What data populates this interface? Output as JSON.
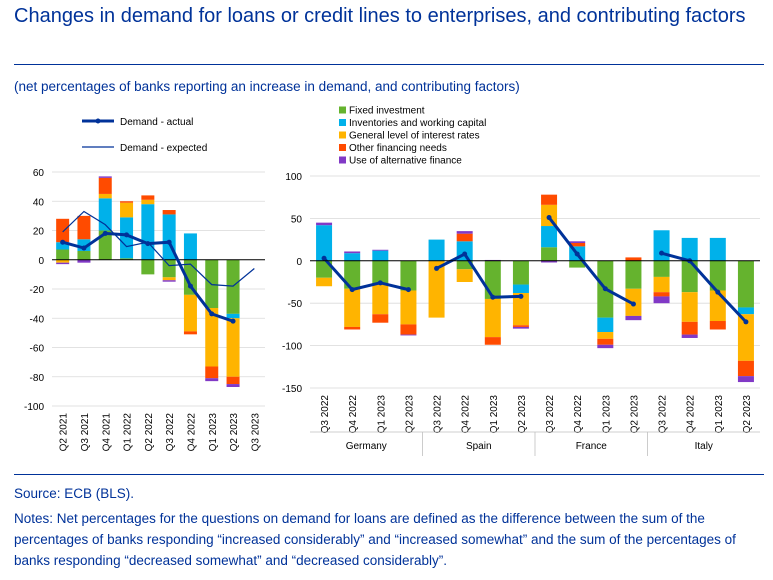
{
  "header": {
    "title": "Changes in demand for loans or credit lines to enterprises, and contributing factors",
    "subtitle": "(net percentages of banks reporting an increase in demand, and contributing factors)"
  },
  "footer": {
    "source": "Source: ECB (BLS).",
    "notes": "Notes: Net percentages for the questions on demand for loans are defined as the difference between the sum of the percentages of banks responding “increased considerably” and “increased somewhat” and the sum of the percentages of banks responding “decreased somewhat” and “decreased considerably”."
  },
  "colors": {
    "fixed_investment": "#65b32e",
    "inventories": "#00b1ea",
    "interest_rates": "#ffb400",
    "other_financing": "#ff4b00",
    "alternative_finance": "#8139c6",
    "demand_line": "#003299",
    "grid": "#d9d9d9"
  },
  "legend": {
    "lines": [
      {
        "label": "Demand - actual",
        "style": "thick"
      },
      {
        "label": "Demand - expected",
        "style": "thin"
      }
    ],
    "factors": [
      {
        "label": "Fixed investment",
        "color": "#65b32e"
      },
      {
        "label": "Inventories and working capital",
        "color": "#00b1ea"
      },
      {
        "label": "General level of interest rates",
        "color": "#ffb400"
      },
      {
        "label": "Other financing needs",
        "color": "#ff4b00"
      },
      {
        "label": "Use of alternative finance",
        "color": "#8139c6"
      }
    ]
  },
  "chart_data": [
    {
      "type": "bar",
      "stacked": true,
      "title": "",
      "ylim": [
        -100,
        60
      ],
      "yticks": [
        60,
        40,
        20,
        0,
        -20,
        -40,
        -60,
        -80,
        -100
      ],
      "categories": [
        "Q2 2021",
        "Q3 2021",
        "Q4 2021",
        "Q1 2022",
        "Q2 2022",
        "Q3 2022",
        "Q4 2022",
        "Q1 2023",
        "Q2 2023",
        "Q3 2023"
      ],
      "series": [
        {
          "name": "Fixed investment",
          "values": [
            7,
            6,
            20,
            1,
            -10,
            -12,
            -24,
            -33,
            -37,
            null
          ]
        },
        {
          "name": "Inventories and working capital",
          "values": [
            5,
            8,
            22,
            28,
            38,
            31,
            18,
            0,
            -3,
            null
          ]
        },
        {
          "name": "General level of interest rates",
          "values": [
            -2,
            0,
            3,
            10,
            3,
            -2,
            -25,
            -40,
            -40,
            null
          ]
        },
        {
          "name": "Other financing needs",
          "values": [
            16,
            16,
            11,
            1,
            3,
            3,
            -2,
            -8,
            -5,
            null
          ]
        },
        {
          "name": "Use of alternative finance",
          "values": [
            -1,
            -2,
            1,
            0,
            0,
            -1,
            0,
            -2,
            -2,
            null
          ]
        }
      ],
      "demand_actual": [
        12,
        8,
        18,
        17,
        11,
        12,
        -18,
        -37,
        -42,
        null
      ],
      "demand_expected": [
        19,
        33,
        24,
        9,
        12,
        -4,
        -3,
        -17,
        -18,
        -6
      ]
    },
    {
      "type": "bar",
      "stacked": true,
      "title": "",
      "ylim": [
        -150,
        100
      ],
      "yticks": [
        100,
        50,
        0,
        -50,
        -100,
        -150
      ],
      "groups": [
        {
          "name": "Germany",
          "categories": [
            "Q3 2022",
            "Q4 2022",
            "Q1 2023",
            "Q2 2023"
          ],
          "series": [
            {
              "name": "Fixed investment",
              "values": [
                -20,
                -33,
                -28,
                -35
              ]
            },
            {
              "name": "Inventories and working capital",
              "values": [
                42,
                9,
                12,
                0
              ]
            },
            {
              "name": "General level of interest rates",
              "values": [
                -10,
                -45,
                -35,
                -40
              ]
            },
            {
              "name": "Other financing needs",
              "values": [
                0,
                -3,
                -10,
                -12
              ]
            },
            {
              "name": "Use of alternative finance",
              "values": [
                3,
                2,
                1,
                -1
              ]
            }
          ],
          "demand_actual": [
            3,
            -34,
            -26,
            -34
          ]
        },
        {
          "name": "Spain",
          "categories": [
            "Q3 2022",
            "Q4 2022",
            "Q1 2023",
            "Q2 2023"
          ],
          "series": [
            {
              "name": "Fixed investment",
              "values": [
                0,
                -10,
                -45,
                -28
              ]
            },
            {
              "name": "Inventories and working capital",
              "values": [
                25,
                23,
                0,
                -10
              ]
            },
            {
              "name": "General level of interest rates",
              "values": [
                -67,
                -15,
                -45,
                -38
              ]
            },
            {
              "name": "Other financing needs",
              "values": [
                0,
                9,
                -9,
                -2
              ]
            },
            {
              "name": "Use of alternative finance",
              "values": [
                0,
                3,
                1,
                -2
              ]
            }
          ],
          "demand_actual": [
            -9,
            8,
            -43,
            -42
          ]
        },
        {
          "name": "France",
          "categories": [
            "Q3 2022",
            "Q4 2022",
            "Q1 2023",
            "Q2 2023"
          ],
          "series": [
            {
              "name": "Fixed investment",
              "values": [
                16,
                -8,
                -67,
                -33
              ]
            },
            {
              "name": "Inventories and working capital",
              "values": [
                25,
                17,
                -17,
                0
              ]
            },
            {
              "name": "General level of interest rates",
              "values": [
                25,
                0,
                -8,
                -32
              ]
            },
            {
              "name": "Other financing needs",
              "values": [
                12,
                4,
                -7,
                4
              ]
            },
            {
              "name": "Use of alternative finance",
              "values": [
                -2,
                2,
                -4,
                -5
              ]
            }
          ],
          "demand_actual": [
            51,
            8,
            -33,
            -51
          ]
        },
        {
          "name": "Italy",
          "categories": [
            "Q3 2022",
            "Q4 2022",
            "Q1 2023",
            "Q2 2023"
          ],
          "series": [
            {
              "name": "Fixed investment",
              "values": [
                -19,
                -37,
                -35,
                -55
              ]
            },
            {
              "name": "Inventories and working capital",
              "values": [
                36,
                27,
                27,
                -8
              ]
            },
            {
              "name": "General level of interest rates",
              "values": [
                -18,
                -35,
                -36,
                -55
              ]
            },
            {
              "name": "Other financing needs",
              "values": [
                -5,
                -15,
                -10,
                -18
              ]
            },
            {
              "name": "Use of alternative finance",
              "values": [
                -8,
                -4,
                0,
                -7
              ]
            }
          ],
          "demand_actual": [
            9,
            0,
            -37,
            -72
          ]
        }
      ]
    }
  ]
}
